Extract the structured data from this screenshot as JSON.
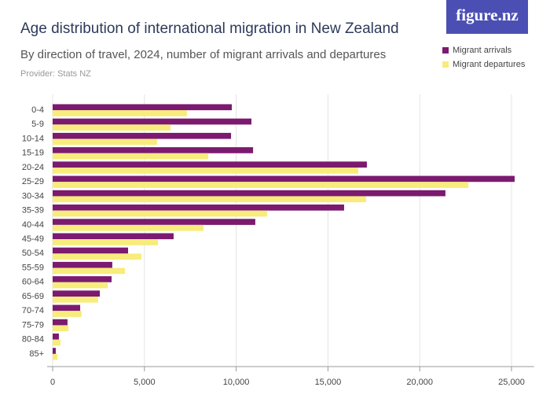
{
  "logo": "figure.nz",
  "chart_data": {
    "type": "hbar",
    "title": "Age distribution of international migration in New Zealand",
    "subtitle": "By direction of travel, 2024, number of migrant arrivals and departures",
    "provider": "Provider: Stats NZ",
    "categories": [
      "0-4",
      "5-9",
      "10-14",
      "15-19",
      "20-24",
      "25-29",
      "30-34",
      "35-39",
      "40-44",
      "45-49",
      "50-54",
      "55-59",
      "60-64",
      "65-69",
      "70-74",
      "75-79",
      "80-84",
      "85+"
    ],
    "series": [
      {
        "name": "Migrant arrivals",
        "color": "#7b1a6f",
        "values": [
          9760,
          10830,
          9720,
          10920,
          17120,
          25170,
          21400,
          15880,
          11040,
          6590,
          4110,
          3250,
          3210,
          2570,
          1500,
          810,
          340,
          170
        ]
      },
      {
        "name": "Migrant departures",
        "color": "#f7ec7c",
        "values": [
          7320,
          6420,
          5690,
          8480,
          16650,
          22650,
          17080,
          11690,
          8220,
          5740,
          4840,
          3940,
          3000,
          2480,
          1580,
          860,
          430,
          260
        ]
      }
    ],
    "xlim": [
      0,
      25800
    ],
    "xticks": [
      0,
      {
        "value": 5000,
        "label": "5,000"
      },
      {
        "value": 10000,
        "label": "10,000"
      },
      {
        "value": 15000,
        "label": "15,000"
      },
      {
        "value": 20000,
        "label": "20,000"
      },
      {
        "value": 25000,
        "label": "25,000"
      }
    ],
    "grid": true
  }
}
